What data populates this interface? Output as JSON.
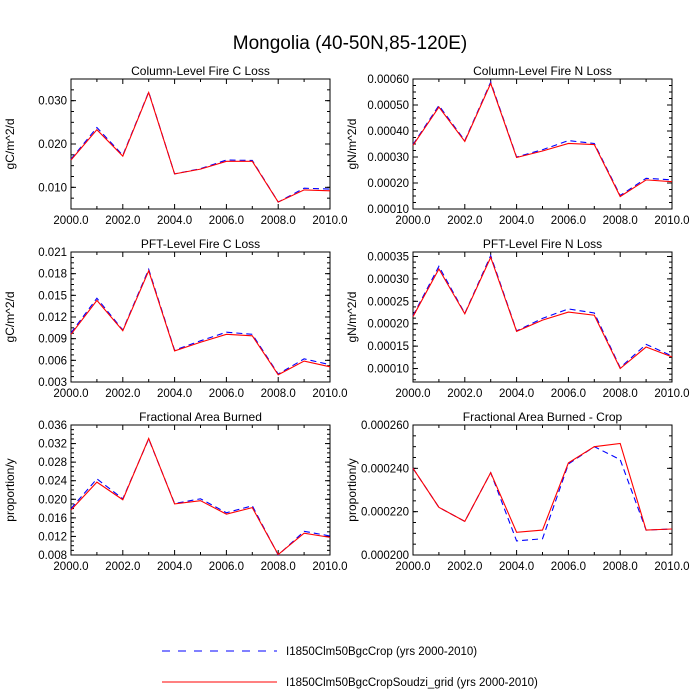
{
  "figure_title": "Mongolia (40-50N,85-120E)",
  "colors": {
    "series_a": "#0000ff",
    "series_b": "#ff0000"
  },
  "legend": {
    "items": [
      {
        "label": "I1850Clm50BgcCrop (yrs 2000-2010)",
        "style": "dashed",
        "color": "#0000ff"
      },
      {
        "label": "I1850Clm50BgcCropSoudzi_grid (yrs 2000-2010)",
        "style": "solid",
        "color": "#ff0000"
      }
    ]
  },
  "chart_data": [
    {
      "type": "line",
      "title": "Column-Level Fire C Loss",
      "ylabel": "gC/m^2/d",
      "xlabel": "",
      "xlim": [
        2000,
        2010
      ],
      "ylim": [
        0.005,
        0.035
      ],
      "xticks": [
        "2000.0",
        "2002.0",
        "2004.0",
        "2006.0",
        "2008.0",
        "2010.0"
      ],
      "yticks": [
        "0.010",
        "0.020",
        "0.030"
      ],
      "x": [
        2000,
        2001,
        2002,
        2003,
        2004,
        2005,
        2006,
        2007,
        2008,
        2009,
        2010
      ],
      "series": [
        {
          "name": "I1850Clm50BgcCrop (yrs 2000-2010)",
          "values": [
            0.0165,
            0.0238,
            0.0174,
            0.032,
            0.0131,
            0.0143,
            0.0163,
            0.0162,
            0.0066,
            0.0098,
            0.0096
          ]
        },
        {
          "name": "I1850Clm50BgcCropSoudzi_grid (yrs 2000-2010)",
          "values": [
            0.0163,
            0.0233,
            0.0172,
            0.0319,
            0.0131,
            0.0142,
            0.016,
            0.016,
            0.0066,
            0.0094,
            0.0092
          ]
        }
      ]
    },
    {
      "type": "line",
      "title": "Column-Level Fire N Loss",
      "ylabel": "gN/m^2/d",
      "xlabel": "",
      "xlim": [
        2000,
        2010
      ],
      "ylim": [
        0.0001,
        0.0006
      ],
      "xticks": [
        "2000.0",
        "2002.0",
        "2004.0",
        "2006.0",
        "2008.0",
        "2010.0"
      ],
      "yticks": [
        "0.00010",
        "0.00020",
        "0.00030",
        "0.00040",
        "0.00050",
        "0.00060"
      ],
      "x": [
        2000,
        2001,
        2002,
        2003,
        2004,
        2005,
        2006,
        2007,
        2008,
        2009,
        2010
      ],
      "series": [
        {
          "name": "I1850Clm50BgcCrop (yrs 2000-2010)",
          "values": [
            0.000348,
            0.000498,
            0.000363,
            0.000588,
            0.0003,
            0.000328,
            0.000363,
            0.000352,
            0.000152,
            0.000218,
            0.000212
          ]
        },
        {
          "name": "I1850Clm50BgcCropSoudzi_grid (yrs 2000-2010)",
          "values": [
            0.000345,
            0.000492,
            0.00036,
            0.000583,
            0.000298,
            0.000323,
            0.000352,
            0.000348,
            0.000148,
            0.000212,
            0.000205
          ]
        }
      ]
    },
    {
      "type": "line",
      "title": "PFT-Level Fire C Loss",
      "ylabel": "gC/m^2/d",
      "xlabel": "",
      "xlim": [
        2000,
        2010
      ],
      "ylim": [
        0.003,
        0.021
      ],
      "xticks": [
        "2000.0",
        "2002.0",
        "2004.0",
        "2006.0",
        "2008.0",
        "2010.0"
      ],
      "yticks": [
        "0.003",
        "0.006",
        "0.009",
        "0.012",
        "0.015",
        "0.018",
        "0.021"
      ],
      "x": [
        2000,
        2001,
        2002,
        2003,
        2004,
        2005,
        2006,
        2007,
        2008,
        2009,
        2010
      ],
      "series": [
        {
          "name": "I1850Clm50BgcCrop (yrs 2000-2010)",
          "values": [
            0.0098,
            0.0146,
            0.0102,
            0.0186,
            0.0074,
            0.0087,
            0.0099,
            0.0096,
            0.0041,
            0.0062,
            0.0054
          ]
        },
        {
          "name": "I1850Clm50BgcCropSoudzi_grid (yrs 2000-2010)",
          "values": [
            0.0096,
            0.0143,
            0.0101,
            0.0184,
            0.0073,
            0.0085,
            0.0096,
            0.0094,
            0.004,
            0.0059,
            0.0051
          ]
        }
      ]
    },
    {
      "type": "line",
      "title": "PFT-Level Fire N Loss",
      "ylabel": "gN/m^2/d",
      "xlabel": "",
      "xlim": [
        2000,
        2010
      ],
      "ylim": [
        7e-05,
        0.00036
      ],
      "xticks": [
        "2000.0",
        "2002.0",
        "2004.0",
        "2006.0",
        "2008.0",
        "2010.0"
      ],
      "yticks": [
        "0.00010",
        "0.00015",
        "0.00020",
        "0.00025",
        "0.00030",
        "0.00035"
      ],
      "x": [
        2000,
        2001,
        2002,
        2003,
        2004,
        2005,
        2006,
        2007,
        2008,
        2009,
        2010
      ],
      "series": [
        {
          "name": "I1850Clm50BgcCrop (yrs 2000-2010)",
          "values": [
            0.000218,
            0.000328,
            0.000223,
            0.000352,
            0.000184,
            0.000212,
            0.000233,
            0.000224,
            0.000102,
            0.000154,
            0.000128
          ]
        },
        {
          "name": "I1850Clm50BgcCropSoudzi_grid (yrs 2000-2010)",
          "values": [
            0.000216,
            0.000322,
            0.000222,
            0.000348,
            0.000183,
            0.000208,
            0.000226,
            0.000219,
            0.0001,
            0.000148,
            0.000126
          ]
        }
      ]
    },
    {
      "type": "line",
      "title": "Fractional Area Burned",
      "ylabel": "proportion/y",
      "xlabel": "",
      "xlim": [
        2000,
        2010
      ],
      "ylim": [
        0.008,
        0.036
      ],
      "xticks": [
        "2000.0",
        "2002.0",
        "2004.0",
        "2006.0",
        "2008.0",
        "2010.0"
      ],
      "yticks": [
        "0.008",
        "0.012",
        "0.016",
        "0.020",
        "0.024",
        "0.028",
        "0.032",
        "0.036"
      ],
      "x": [
        2000,
        2001,
        2002,
        2003,
        2004,
        2005,
        2006,
        2007,
        2008,
        2009,
        2010
      ],
      "series": [
        {
          "name": "I1850Clm50BgcCrop (yrs 2000-2010)",
          "values": [
            0.018,
            0.0244,
            0.0201,
            0.033,
            0.0191,
            0.0201,
            0.0171,
            0.0186,
            0.008,
            0.0131,
            0.0121
          ]
        },
        {
          "name": "I1850Clm50BgcCropSoudzi_grid (yrs 2000-2010)",
          "values": [
            0.0177,
            0.0237,
            0.0199,
            0.0331,
            0.019,
            0.0197,
            0.0168,
            0.0182,
            0.0081,
            0.0127,
            0.0118
          ]
        }
      ]
    },
    {
      "type": "line",
      "title": "Fractional Area Burned - Crop",
      "ylabel": "proportion/y",
      "xlabel": "",
      "xlim": [
        2000,
        2010
      ],
      "ylim": [
        0.0002,
        0.00026
      ],
      "xticks": [
        "2000.0",
        "2002.0",
        "2004.0",
        "2006.0",
        "2008.0",
        "2010.0"
      ],
      "yticks": [
        "0.000200",
        "0.000220",
        "0.000240",
        "0.000260"
      ],
      "x": [
        2000,
        2001,
        2002,
        2003,
        2004,
        2005,
        2006,
        2007,
        2008,
        2009,
        2010
      ],
      "series": [
        {
          "name": "I1850Clm50BgcCrop (yrs 2000-2010)",
          "values": [
            0.00024,
            0.000222,
            0.0002155,
            0.000238,
            0.0002065,
            0.0002075,
            0.000242,
            0.00025,
            0.000244,
            0.0002115,
            0.000212
          ]
        },
        {
          "name": "I1850Clm50BgcCropSoudzi_grid (yrs 2000-2010)",
          "values": [
            0.00024,
            0.000222,
            0.0002155,
            0.000238,
            0.0002105,
            0.0002115,
            0.0002425,
            0.00025,
            0.0002515,
            0.0002115,
            0.000212
          ]
        }
      ]
    }
  ]
}
